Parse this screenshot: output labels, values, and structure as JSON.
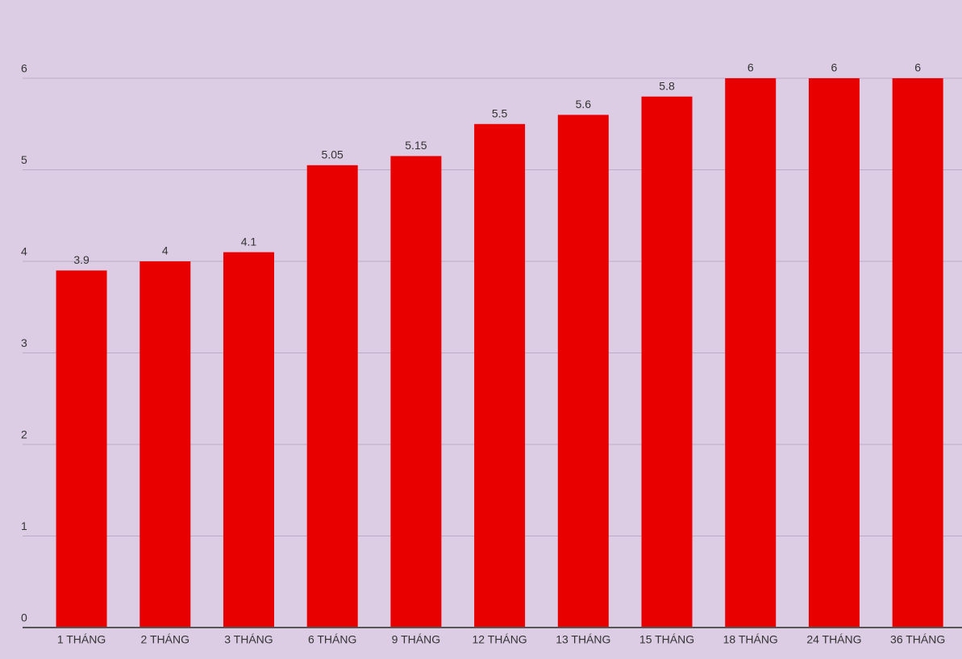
{
  "chart_data": {
    "type": "bar",
    "categories": [
      "1 THÁNG",
      "2 THÁNG",
      "3 THÁNG",
      "6 THÁNG",
      "9 THÁNG",
      "12 THÁNG",
      "13 THÁNG",
      "15 THÁNG",
      "18 THÁNG",
      "24 THÁNG",
      "36 THÁNG"
    ],
    "values": [
      3.9,
      4,
      4.1,
      5.05,
      5.15,
      5.5,
      5.6,
      5.8,
      6,
      6,
      6
    ],
    "color": "#e80000",
    "ylim": [
      0,
      6
    ],
    "yticks": [
      0,
      1,
      2,
      3,
      4,
      5,
      6
    ],
    "grid": true
  }
}
